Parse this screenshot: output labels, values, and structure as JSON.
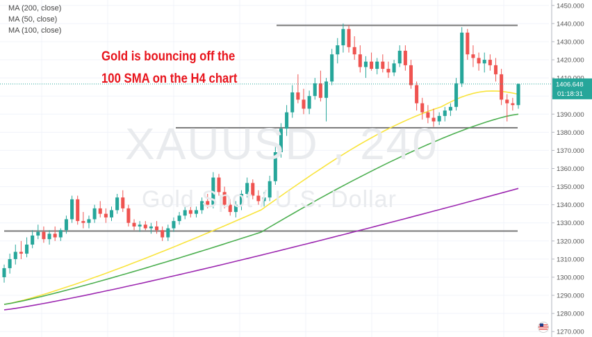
{
  "legend": [
    {
      "label": "MA (200, close)"
    },
    {
      "label": "MA (50, close)"
    },
    {
      "label": "MA (100, close)"
    }
  ],
  "annotation": {
    "line1": "Gold is bouncing off the",
    "line2": "100 SMA on the H4 chart"
  },
  "watermark": {
    "symbol": "XAUUSD , 240",
    "description": "Gold Spot / U.S. Dollar"
  },
  "price_label": {
    "price": "1406.648",
    "countdown": "01:18:31"
  },
  "colors": {
    "up": "#26a69a",
    "down": "#ef5350",
    "ma50": "#f9e43c",
    "ma100": "#4caf50",
    "ma200": "#9c27b0",
    "level": "#777777",
    "price_tag": "#26a69a"
  },
  "chart_data": {
    "type": "candlestick",
    "title": "",
    "ylim": [
      1267,
      1453
    ],
    "y_ticks": [
      1270,
      1280,
      1290,
      1300,
      1310,
      1320,
      1330,
      1340,
      1350,
      1360,
      1370,
      1380,
      1390,
      1400,
      1410,
      1420,
      1430,
      1440,
      1450
    ],
    "current_price": 1406.648,
    "horizontal_levels": [
      1439,
      1382.5,
      1325.5
    ],
    "candles": [
      [
        1300,
        1307,
        1297,
        1305
      ],
      [
        1305,
        1313,
        1302,
        1310
      ],
      [
        1310,
        1318,
        1307,
        1314
      ],
      [
        1314,
        1320,
        1310,
        1313
      ],
      [
        1313,
        1322,
        1311,
        1318
      ],
      [
        1318,
        1326,
        1316,
        1323
      ],
      [
        1323,
        1329,
        1321,
        1325
      ],
      [
        1325,
        1328,
        1319,
        1321
      ],
      [
        1321,
        1326,
        1318,
        1324
      ],
      [
        1324,
        1328,
        1320,
        1322
      ],
      [
        1322,
        1327,
        1320,
        1326
      ],
      [
        1326,
        1334,
        1324,
        1332
      ],
      [
        1332,
        1345,
        1330,
        1343
      ],
      [
        1343,
        1345,
        1329,
        1331
      ],
      [
        1331,
        1336,
        1327,
        1330
      ],
      [
        1330,
        1334,
        1327,
        1332
      ],
      [
        1332,
        1340,
        1330,
        1338
      ],
      [
        1338,
        1342,
        1333,
        1335
      ],
      [
        1335,
        1338,
        1330,
        1333
      ],
      [
        1333,
        1339,
        1331,
        1337
      ],
      [
        1337,
        1346,
        1335,
        1344
      ],
      [
        1344,
        1348,
        1336,
        1338
      ],
      [
        1338,
        1340,
        1328,
        1330
      ],
      [
        1330,
        1332,
        1326,
        1328
      ],
      [
        1328,
        1331,
        1325,
        1329
      ],
      [
        1329,
        1331,
        1326,
        1327
      ],
      [
        1327,
        1330,
        1324,
        1328
      ],
      [
        1328,
        1331,
        1324,
        1326
      ],
      [
        1326,
        1328,
        1320,
        1322
      ],
      [
        1322,
        1329,
        1320,
        1327
      ],
      [
        1327,
        1333,
        1325,
        1331
      ],
      [
        1331,
        1336,
        1329,
        1334
      ],
      [
        1334,
        1339,
        1332,
        1337
      ],
      [
        1337,
        1340,
        1333,
        1335
      ],
      [
        1335,
        1339,
        1333,
        1337
      ],
      [
        1337,
        1344,
        1335,
        1342
      ],
      [
        1342,
        1346,
        1338,
        1340
      ],
      [
        1340,
        1358,
        1338,
        1355
      ],
      [
        1355,
        1357,
        1345,
        1347
      ],
      [
        1347,
        1350,
        1338,
        1340
      ],
      [
        1340,
        1343,
        1334,
        1336
      ],
      [
        1336,
        1342,
        1333,
        1340
      ],
      [
        1340,
        1348,
        1337,
        1346
      ],
      [
        1346,
        1355,
        1344,
        1352
      ],
      [
        1352,
        1354,
        1343,
        1345
      ],
      [
        1345,
        1348,
        1340,
        1342
      ],
      [
        1342,
        1347,
        1339,
        1344
      ],
      [
        1344,
        1356,
        1342,
        1353
      ],
      [
        1353,
        1372,
        1351,
        1369
      ],
      [
        1369,
        1385,
        1366,
        1382
      ],
      [
        1382,
        1395,
        1378,
        1391
      ],
      [
        1391,
        1406,
        1388,
        1402
      ],
      [
        1402,
        1412,
        1396,
        1398
      ],
      [
        1398,
        1404,
        1390,
        1393
      ],
      [
        1393,
        1403,
        1390,
        1400
      ],
      [
        1400,
        1410,
        1398,
        1407
      ],
      [
        1407,
        1414,
        1397,
        1399
      ],
      [
        1399,
        1410,
        1386,
        1408
      ],
      [
        1408,
        1426,
        1406,
        1423
      ],
      [
        1423,
        1432,
        1418,
        1428
      ],
      [
        1428,
        1440,
        1424,
        1437
      ],
      [
        1437,
        1439,
        1424,
        1427
      ],
      [
        1427,
        1433,
        1420,
        1423
      ],
      [
        1423,
        1428,
        1413,
        1416
      ],
      [
        1416,
        1422,
        1410,
        1419
      ],
      [
        1419,
        1424,
        1414,
        1415
      ],
      [
        1415,
        1421,
        1412,
        1419
      ],
      [
        1419,
        1423,
        1413,
        1415
      ],
      [
        1415,
        1419,
        1410,
        1413
      ],
      [
        1413,
        1420,
        1411,
        1418
      ],
      [
        1418,
        1428,
        1416,
        1425
      ],
      [
        1425,
        1428,
        1414,
        1417
      ],
      [
        1417,
        1420,
        1404,
        1406
      ],
      [
        1406,
        1408,
        1392,
        1396
      ],
      [
        1396,
        1399,
        1387,
        1391
      ],
      [
        1391,
        1395,
        1385,
        1388
      ],
      [
        1388,
        1393,
        1383,
        1386
      ],
      [
        1386,
        1391,
        1384,
        1389
      ],
      [
        1389,
        1394,
        1386,
        1392
      ],
      [
        1392,
        1396,
        1389,
        1394
      ],
      [
        1394,
        1410,
        1392,
        1407
      ],
      [
        1407,
        1438,
        1405,
        1435
      ],
      [
        1435,
        1437,
        1420,
        1423
      ],
      [
        1423,
        1428,
        1416,
        1421
      ],
      [
        1421,
        1424,
        1414,
        1418
      ],
      [
        1418,
        1424,
        1413,
        1420
      ],
      [
        1420,
        1423,
        1414,
        1417
      ],
      [
        1417,
        1421,
        1408,
        1412
      ],
      [
        1412,
        1415,
        1395,
        1398
      ],
      [
        1398,
        1401,
        1386,
        1396
      ],
      [
        1396,
        1399,
        1392,
        1395
      ],
      [
        1395,
        1407,
        1393,
        1406.648
      ]
    ],
    "series": [
      {
        "name": "MA (50, close)",
        "y_start": 1285,
        "y_end": 1401
      },
      {
        "name": "MA (100, close)",
        "y_start": 1285,
        "y_end": 1390
      },
      {
        "name": "MA (200, close)",
        "y_start": 1282,
        "y_end": 1349
      }
    ]
  }
}
